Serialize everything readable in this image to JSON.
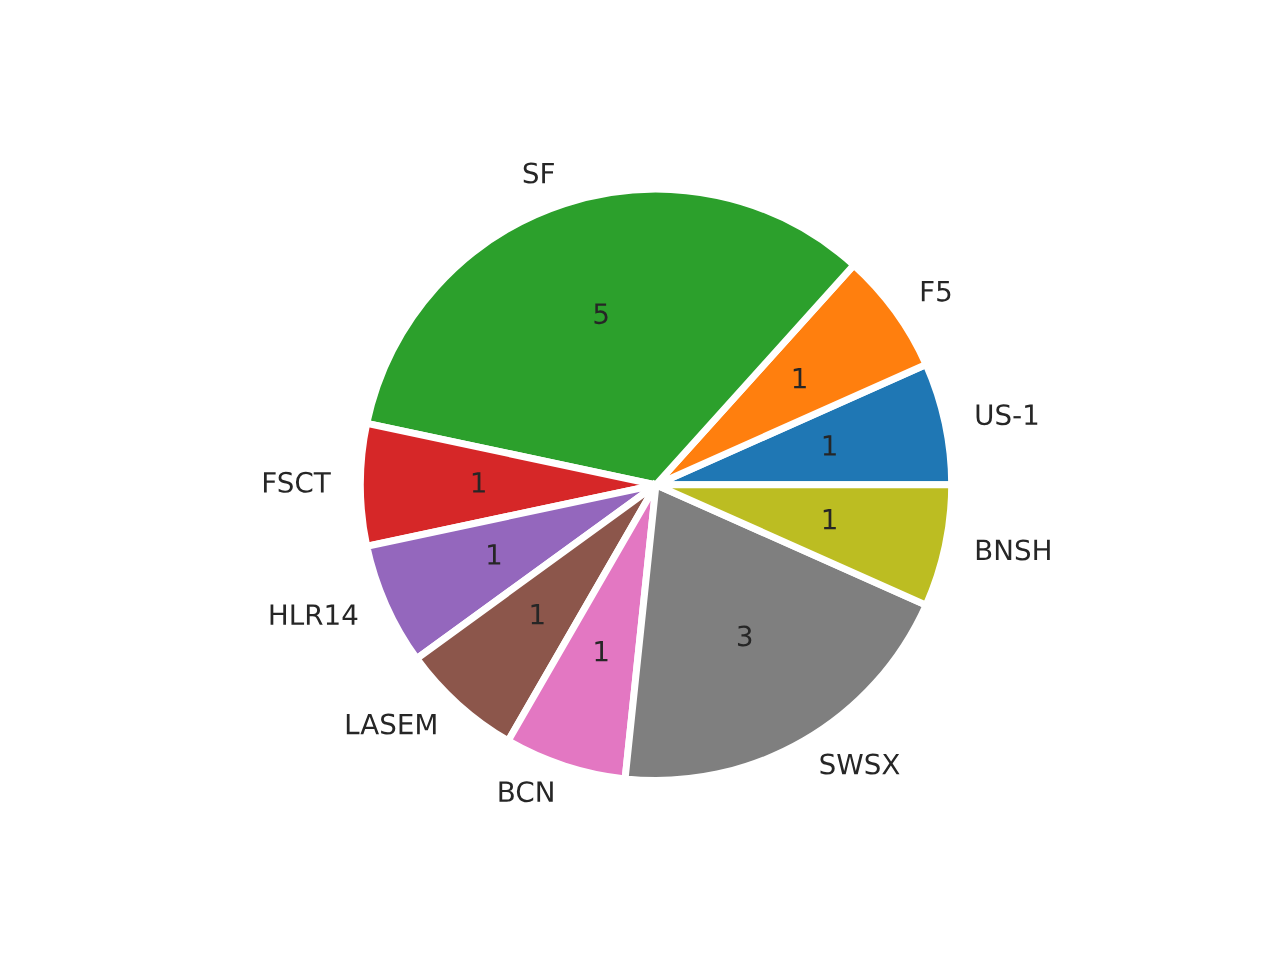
{
  "chart_data": {
    "type": "pie",
    "categories": [
      "US-1",
      "F5",
      "SF",
      "FSCT",
      "HLR14",
      "LASEM",
      "BCN",
      "SWSX",
      "BNSH"
    ],
    "values": [
      1,
      1,
      5,
      1,
      1,
      1,
      1,
      3,
      1
    ],
    "colors": [
      "#1f77b4",
      "#ff7f0e",
      "#2ca02c",
      "#d62728",
      "#9467bd",
      "#8c564b",
      "#e377c2",
      "#7f7f7f",
      "#bcbd22"
    ],
    "data_labels": true
  }
}
